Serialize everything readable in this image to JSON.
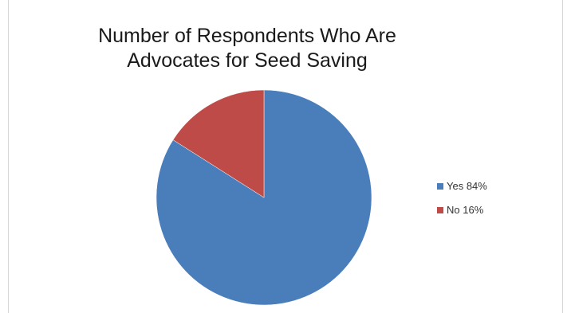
{
  "chart_data": {
    "type": "pie",
    "title_lines": [
      "Number of Respondents Who Are",
      "Advocates for Seed Saving"
    ],
    "slices": [
      {
        "label": "Yes 84%",
        "value": 84,
        "color": "#4a7ebb"
      },
      {
        "label": "No 16%",
        "value": 16,
        "color": "#be4b48"
      }
    ],
    "legend_position": "right"
  }
}
